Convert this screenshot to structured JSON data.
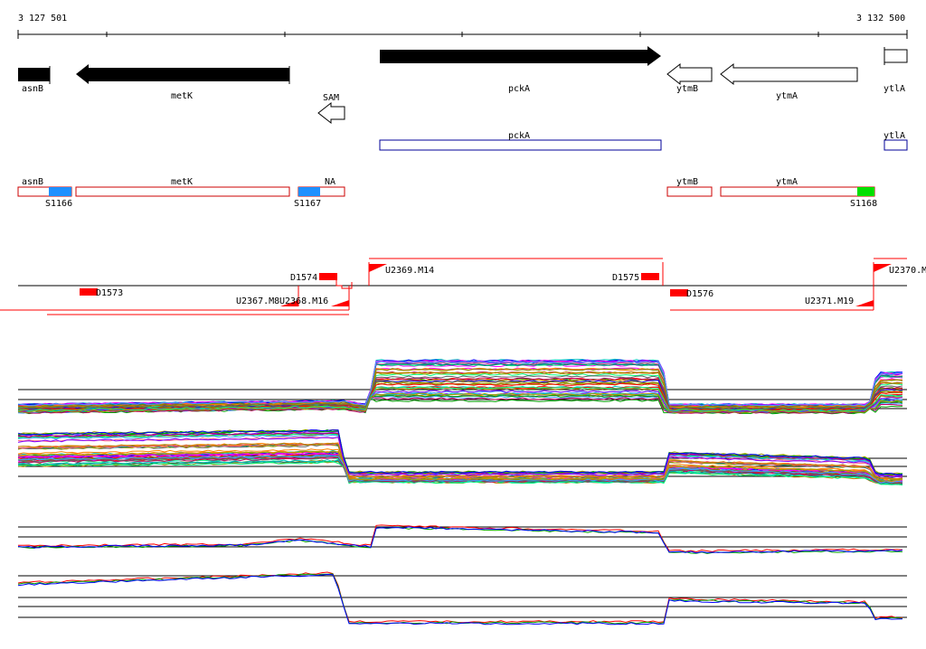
{
  "ruler": {
    "start_label": "3 127 501",
    "end_label": "3 132 500"
  },
  "genes_strand": {
    "asnB": "asnB",
    "metK": "metK",
    "sam": "SAM",
    "pckA": "pckA",
    "ytmB": "ytmB",
    "ytmA": "ytmA",
    "ytlA": "ytlA"
  },
  "genes_predicted": {
    "pckA": "pckA",
    "ytlA": "ytlA"
  },
  "annotations": {
    "asnB": "asnB",
    "metK": "metK",
    "na": "NA",
    "ytmB": "ytmB",
    "ytmA": "ytmA",
    "s1166": "S1166",
    "s1167": "S1167",
    "s1168": "S1168"
  },
  "transcripts": {
    "d1573": "D1573",
    "d1574": "D1574",
    "d1575": "D1575",
    "d1576": "D1576",
    "u2367": "U2367.M8",
    "u2368": "U2368.M16",
    "u2369": "U2369.M14",
    "u2370": "U2370.M",
    "u2371": "U2371.M19"
  },
  "colors": {
    "gene_fill": "#000000",
    "annotation_box": "#cc0000",
    "predicted_box": "#00009a",
    "shine_blue": "#1e90ff",
    "shine_green": "#00e000",
    "feature_red": "#ff0000"
  }
}
